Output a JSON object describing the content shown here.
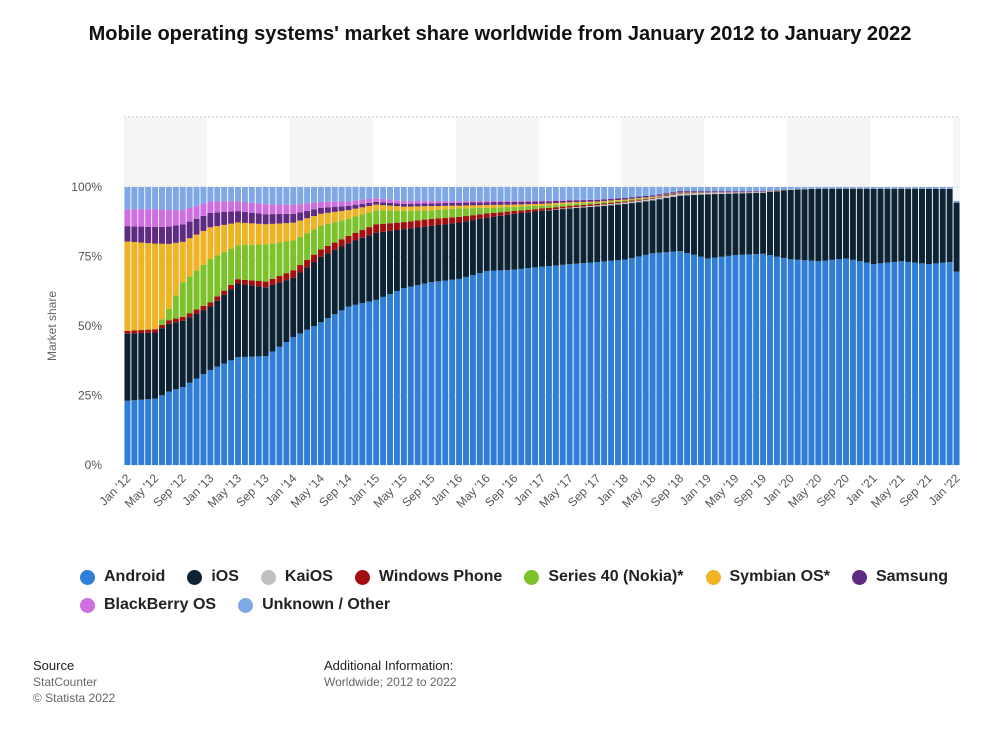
{
  "title": "Mobile operating systems' market share worldwide from January 2012 to January 2022",
  "legend": [
    {
      "name": "Android",
      "color": "#2f7ed8"
    },
    {
      "name": "iOS",
      "color": "#0d2233"
    },
    {
      "name": "KaiOS",
      "color": "#c0c0c0"
    },
    {
      "name": "Windows Phone",
      "color": "#a30f0f"
    },
    {
      "name": "Series 40 (Nokia)*",
      "color": "#7cc22a"
    },
    {
      "name": "Symbian OS*",
      "color": "#f0b323"
    },
    {
      "name": "Samsung",
      "color": "#5e2a82"
    },
    {
      "name": "BlackBerry OS",
      "color": "#cf6ee0"
    },
    {
      "name": "Unknown / Other",
      "color": "#7fa9e6"
    }
  ],
  "footer": {
    "source_label": "Source",
    "source_lines": [
      "StatCounter",
      "© Statista 2022"
    ],
    "info_label": "Additional Information:",
    "info_text": "Worldwide; 2012 to 2022"
  },
  "chart_data": {
    "type": "bar",
    "stacked": true,
    "ylabel": "Market share",
    "ylim": [
      0,
      100
    ],
    "yticks": [
      "0%",
      "25%",
      "50%",
      "75%",
      "100%"
    ],
    "grid": true,
    "x_start": "2012-01",
    "x_end": "2022-01",
    "tick_labels": [
      "Jan '12",
      "May '12",
      "Sep '12",
      "Jan '13",
      "May '13",
      "Sep '13",
      "Jan '14",
      "May '14",
      "Sep '14",
      "Jan '15",
      "May '15",
      "Sep '15",
      "Jan '16",
      "May '16",
      "Sep '16",
      "Jan '17",
      "May '17",
      "Sep '17",
      "Jan '18",
      "May '18",
      "Sep '18",
      "Jan '19",
      "May '19",
      "Sep '19",
      "Jan '20",
      "May '20",
      "Sep '20",
      "Jan '21",
      "May '21",
      "Sep '21",
      "Jan '22"
    ],
    "tick_month_index": [
      0,
      4,
      8,
      12,
      16,
      20,
      24,
      28,
      32,
      36,
      40,
      44,
      48,
      52,
      56,
      60,
      64,
      68,
      72,
      76,
      80,
      84,
      88,
      92,
      96,
      100,
      104,
      108,
      112,
      116,
      120
    ],
    "series_keyframes": [
      {
        "name": "Android",
        "points": [
          [
            0,
            23
          ],
          [
            4,
            24
          ],
          [
            8,
            27
          ],
          [
            12,
            33
          ],
          [
            16,
            38
          ],
          [
            20,
            38
          ],
          [
            24,
            43
          ],
          [
            28,
            48
          ],
          [
            32,
            55
          ],
          [
            36,
            59
          ],
          [
            40,
            63
          ],
          [
            44,
            65
          ],
          [
            48,
            66
          ],
          [
            52,
            69
          ],
          [
            56,
            70
          ],
          [
            60,
            71
          ],
          [
            64,
            72
          ],
          [
            68,
            73
          ],
          [
            72,
            74
          ],
          [
            76,
            76
          ],
          [
            80,
            77
          ],
          [
            84,
            74
          ],
          [
            88,
            75
          ],
          [
            92,
            76
          ],
          [
            96,
            74
          ],
          [
            100,
            73
          ],
          [
            104,
            74
          ],
          [
            108,
            72
          ],
          [
            112,
            73
          ],
          [
            116,
            72
          ],
          [
            120,
            70
          ]
        ]
      },
      {
        "name": "iOS",
        "points": [
          [
            0,
            24
          ],
          [
            4,
            24
          ],
          [
            8,
            23
          ],
          [
            12,
            22
          ],
          [
            16,
            26
          ],
          [
            20,
            24
          ],
          [
            24,
            20
          ],
          [
            28,
            22
          ],
          [
            32,
            22
          ],
          [
            36,
            24
          ],
          [
            40,
            21
          ],
          [
            44,
            20
          ],
          [
            48,
            20
          ],
          [
            52,
            19
          ],
          [
            56,
            20
          ],
          [
            60,
            20
          ],
          [
            64,
            20
          ],
          [
            68,
            20
          ],
          [
            72,
            20
          ],
          [
            76,
            19
          ],
          [
            80,
            20
          ],
          [
            84,
            23
          ],
          [
            88,
            22
          ],
          [
            92,
            22
          ],
          [
            96,
            25
          ],
          [
            100,
            26
          ],
          [
            104,
            25
          ],
          [
            108,
            27
          ],
          [
            112,
            26
          ],
          [
            116,
            27
          ],
          [
            120,
            25
          ]
        ]
      },
      {
        "name": "KaiOS",
        "points": [
          [
            0,
            0
          ],
          [
            60,
            0
          ],
          [
            64,
            0.3
          ],
          [
            68,
            0.4
          ],
          [
            72,
            0.5
          ],
          [
            76,
            0.6
          ],
          [
            80,
            0.7
          ],
          [
            84,
            0.6
          ],
          [
            88,
            0.4
          ],
          [
            92,
            0.3
          ],
          [
            96,
            0.2
          ],
          [
            100,
            0.1
          ],
          [
            104,
            0.1
          ],
          [
            108,
            0.1
          ],
          [
            120,
            0.1
          ]
        ]
      },
      {
        "name": "Windows Phone",
        "points": [
          [
            0,
            1
          ],
          [
            12,
            1.5
          ],
          [
            16,
            1.5
          ],
          [
            20,
            2
          ],
          [
            24,
            2.5
          ],
          [
            28,
            2.5
          ],
          [
            32,
            2.5
          ],
          [
            36,
            3
          ],
          [
            40,
            2.5
          ],
          [
            44,
            2.5
          ],
          [
            48,
            2
          ],
          [
            52,
            1.5
          ],
          [
            56,
            1
          ],
          [
            60,
            0.8
          ],
          [
            64,
            0.6
          ],
          [
            68,
            0.5
          ],
          [
            72,
            0.4
          ],
          [
            76,
            0.3
          ],
          [
            80,
            0.2
          ],
          [
            84,
            0.1
          ],
          [
            88,
            0.1
          ],
          [
            96,
            0
          ],
          [
            120,
            0
          ]
        ]
      },
      {
        "name": "Series 40 (Nokia)*",
        "points": [
          [
            0,
            0
          ],
          [
            4,
            0
          ],
          [
            6,
            4
          ],
          [
            8,
            12
          ],
          [
            12,
            15
          ],
          [
            16,
            12
          ],
          [
            20,
            13
          ],
          [
            24,
            10
          ],
          [
            28,
            8
          ],
          [
            32,
            6
          ],
          [
            36,
            5
          ],
          [
            40,
            4
          ],
          [
            44,
            3
          ],
          [
            48,
            3
          ],
          [
            52,
            2
          ],
          [
            56,
            1.5
          ],
          [
            60,
            1
          ],
          [
            64,
            0.8
          ],
          [
            68,
            0.5
          ],
          [
            72,
            0.4
          ],
          [
            76,
            0.2
          ],
          [
            80,
            0.1
          ],
          [
            84,
            0
          ],
          [
            120,
            0
          ]
        ]
      },
      {
        "name": "Symbian OS*",
        "points": [
          [
            0,
            32
          ],
          [
            4,
            31
          ],
          [
            8,
            14
          ],
          [
            12,
            11
          ],
          [
            16,
            8
          ],
          [
            20,
            7
          ],
          [
            24,
            6
          ],
          [
            28,
            4
          ],
          [
            32,
            3
          ],
          [
            36,
            2
          ],
          [
            40,
            1.5
          ],
          [
            44,
            1.5
          ],
          [
            48,
            1
          ],
          [
            52,
            1
          ],
          [
            56,
            0.8
          ],
          [
            60,
            0.7
          ],
          [
            64,
            0.5
          ],
          [
            68,
            0.4
          ],
          [
            72,
            0.3
          ],
          [
            76,
            0.2
          ],
          [
            80,
            0.1
          ],
          [
            84,
            0
          ],
          [
            120,
            0
          ]
        ]
      },
      {
        "name": "Samsung",
        "points": [
          [
            0,
            5.5
          ],
          [
            4,
            6
          ],
          [
            8,
            6
          ],
          [
            12,
            5
          ],
          [
            16,
            4
          ],
          [
            20,
            3.5
          ],
          [
            24,
            3
          ],
          [
            28,
            2
          ],
          [
            32,
            1.5
          ],
          [
            36,
            1
          ],
          [
            40,
            1
          ],
          [
            44,
            1
          ],
          [
            48,
            1
          ],
          [
            52,
            1
          ],
          [
            56,
            1
          ],
          [
            60,
            0.8
          ],
          [
            64,
            0.7
          ],
          [
            68,
            0.6
          ],
          [
            72,
            0.6
          ],
          [
            76,
            0.5
          ],
          [
            80,
            0.5
          ],
          [
            84,
            0.4
          ],
          [
            88,
            0.3
          ],
          [
            92,
            0.2
          ],
          [
            96,
            0
          ],
          [
            120,
            0
          ]
        ]
      },
      {
        "name": "BlackBerry OS",
        "points": [
          [
            0,
            6
          ],
          [
            4,
            6.5
          ],
          [
            8,
            5
          ],
          [
            12,
            4
          ],
          [
            16,
            3.5
          ],
          [
            20,
            3.5
          ],
          [
            24,
            3
          ],
          [
            28,
            2
          ],
          [
            32,
            1.5
          ],
          [
            36,
            1.3
          ],
          [
            40,
            1
          ],
          [
            44,
            0.8
          ],
          [
            48,
            0.6
          ],
          [
            52,
            0.4
          ],
          [
            56,
            0.3
          ],
          [
            60,
            0.2
          ],
          [
            64,
            0.1
          ],
          [
            68,
            0.1
          ],
          [
            72,
            0
          ],
          [
            120,
            0
          ]
        ]
      },
      {
        "name": "Unknown / Other",
        "points": [
          [
            0,
            8
          ],
          [
            4,
            8
          ],
          [
            8,
            8
          ],
          [
            12,
            5
          ],
          [
            16,
            5
          ],
          [
            20,
            6
          ],
          [
            24,
            6
          ],
          [
            28,
            5
          ],
          [
            32,
            5
          ],
          [
            36,
            4
          ],
          [
            40,
            5
          ],
          [
            44,
            5
          ],
          [
            48,
            5
          ],
          [
            52,
            5
          ],
          [
            56,
            5
          ],
          [
            60,
            5
          ],
          [
            64,
            4.7
          ],
          [
            68,
            4.5
          ],
          [
            72,
            3.9
          ],
          [
            76,
            3
          ],
          [
            80,
            1.5
          ],
          [
            84,
            1.5
          ],
          [
            88,
            1.5
          ],
          [
            92,
            1.5
          ],
          [
            96,
            0.8
          ],
          [
            100,
            0.5
          ],
          [
            104,
            0.5
          ],
          [
            108,
            0.5
          ],
          [
            112,
            0.5
          ],
          [
            116,
            0.5
          ],
          [
            120,
            0.5
          ]
        ]
      }
    ]
  }
}
